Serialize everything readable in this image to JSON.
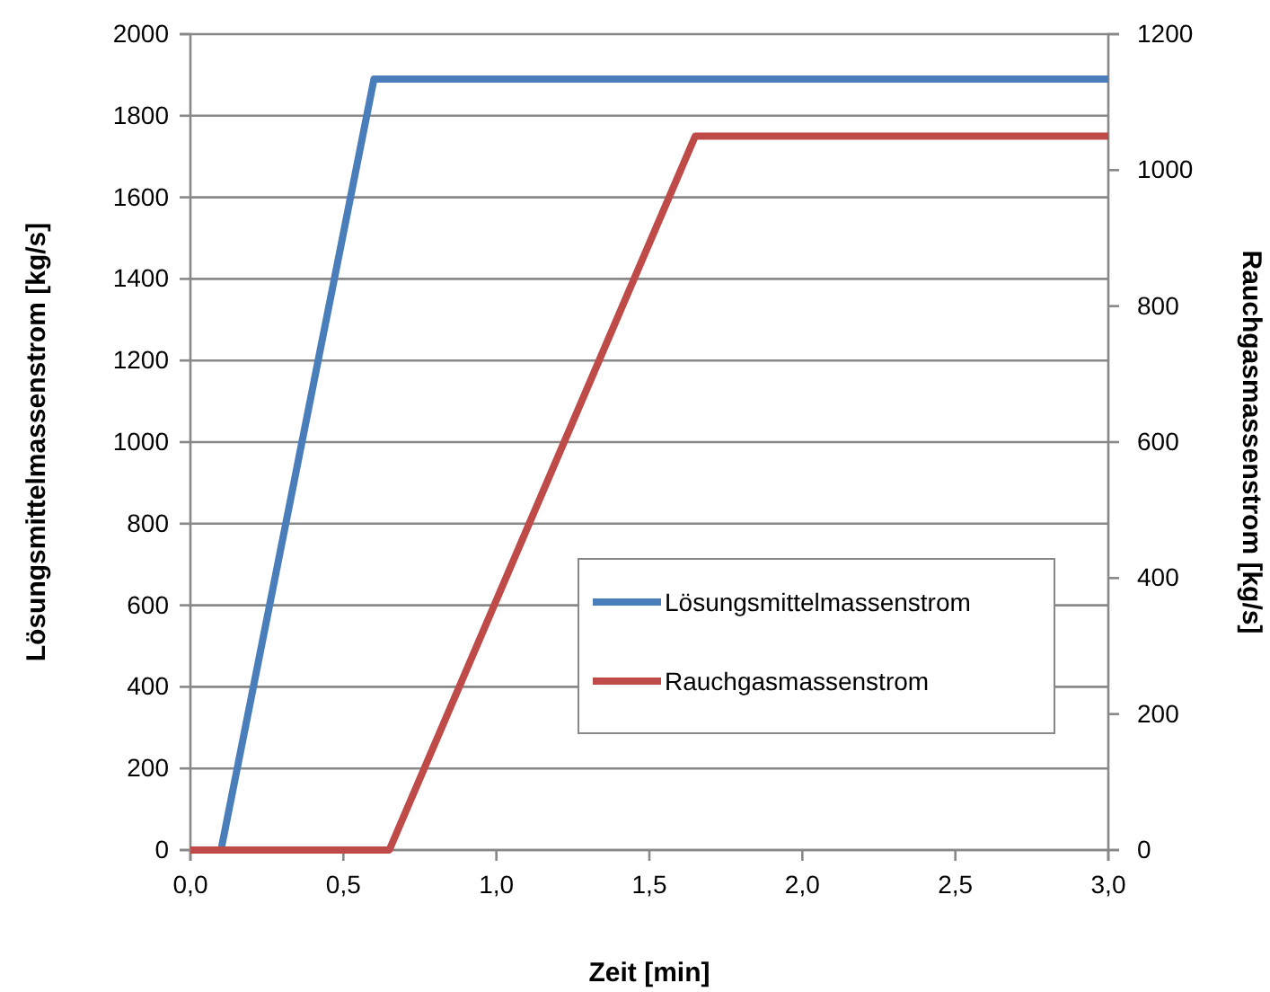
{
  "chart_data": {
    "type": "line",
    "xlabel": "Zeit [min]",
    "ylabel": "Lösungsmittelmassenstrom [kg/s]",
    "y2label": "Rauchgasmassenstrom [kg/s]",
    "xlim": [
      0,
      3
    ],
    "xticks": [
      {
        "value": 0,
        "label": "0,0"
      },
      {
        "value": 0.5,
        "label": "0,5"
      },
      {
        "value": 1,
        "label": "1,0"
      },
      {
        "value": 1.5,
        "label": "1,5"
      },
      {
        "value": 2,
        "label": "2,0"
      },
      {
        "value": 2.5,
        "label": "2,5"
      },
      {
        "value": 3,
        "label": "3,0"
      }
    ],
    "ylim": [
      0,
      2000
    ],
    "yticks": [
      0,
      200,
      400,
      600,
      800,
      1000,
      1200,
      1400,
      1600,
      1800,
      2000
    ],
    "y2lim": [
      0,
      1200
    ],
    "y2ticks": [
      0,
      200,
      400,
      600,
      800,
      1000,
      1200
    ],
    "grid": "y",
    "legend": "bottom right",
    "line_style": "solid",
    "marker": "none",
    "series": [
      {
        "name": "Lösungsmittelmassenstrom",
        "color": "#4a7ebb",
        "x": [
          0.1,
          0.6,
          3
        ],
        "values": [
          0,
          1890,
          1890
        ]
      },
      {
        "name": "Rauchgasmassenstrom",
        "color": "#be4b48",
        "axis": "y2",
        "x": [
          0,
          0.65,
          1.65,
          3
        ],
        "values": [
          0,
          0,
          1050,
          1050
        ]
      }
    ]
  }
}
